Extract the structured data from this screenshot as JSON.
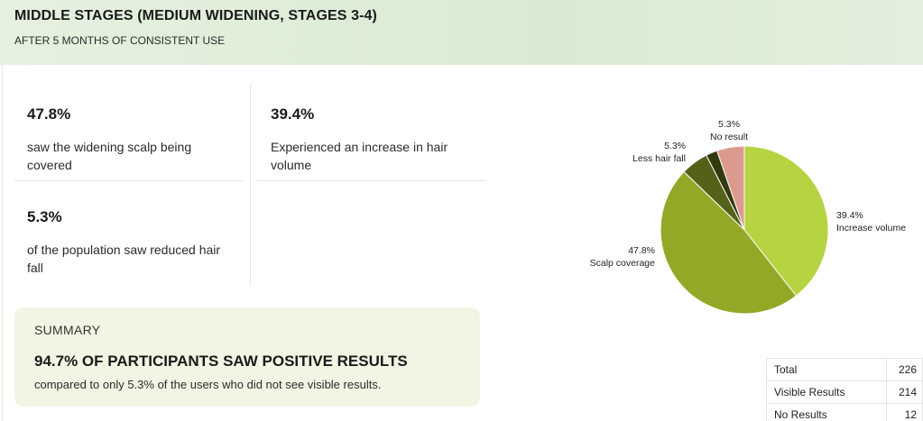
{
  "header": {
    "title": "MIDDLE STAGES (MEDIUM WIDENING, STAGES 3-4)",
    "subtitle": "AFTER 5 MONTHS OF CONSISTENT USE"
  },
  "stats": [
    {
      "value": "47.8%",
      "description": "saw the widening scalp being covered"
    },
    {
      "value": "39.4%",
      "description": "Experienced an increase in hair volume"
    },
    {
      "value": "5.3%",
      "description": "of the population saw reduced hair fall"
    }
  ],
  "summary": {
    "label": "SUMMARY",
    "headline": "94.7% OF PARTICIPANTS SAW POSITIVE RESULTS",
    "note": "compared to only 5.3% of the users who did not see visible results."
  },
  "chart_data": {
    "type": "pie",
    "start_angle": "12 o'clock",
    "direction": "clockwise",
    "slices": [
      {
        "label": "Increase volume",
        "value": 39.4,
        "display": "39.4%",
        "color": "#b6d341"
      },
      {
        "label": "Scalp coverage",
        "value": 47.8,
        "display": "47.8%",
        "color": "#93a827"
      },
      {
        "label": "Less hair fall",
        "value": 5.3,
        "display": "5.3%",
        "color": "#556118"
      },
      {
        "label": "",
        "value": 2.2,
        "display": "",
        "color": "#323a0e"
      },
      {
        "label": "No result",
        "value": 5.3,
        "display": "5.3%",
        "color": "#dc9a8e"
      }
    ]
  },
  "totals": [
    {
      "label": "Total",
      "value": "226"
    },
    {
      "label": "Visible Results",
      "value": "214"
    },
    {
      "label": "No Results",
      "value": "12"
    }
  ]
}
